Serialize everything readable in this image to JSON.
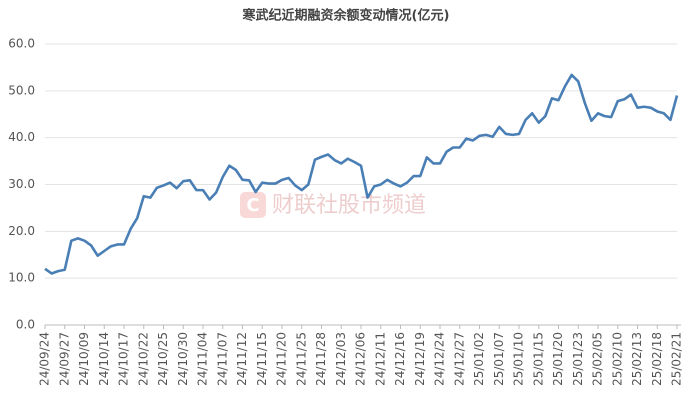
{
  "chart_data": {
    "type": "line",
    "title": "寒武纪近期融资余额变动情况(亿元)",
    "watermark": "财联社股市频道",
    "categories": [
      "24/09/24",
      null,
      null,
      "24/09/27",
      null,
      null,
      "24/10/09",
      null,
      null,
      "24/10/14",
      null,
      null,
      "24/10/17",
      null,
      null,
      "24/10/22",
      null,
      null,
      "24/10/25",
      null,
      null,
      "24/10/30",
      null,
      null,
      "24/11/04",
      null,
      null,
      "24/11/07",
      null,
      null,
      "24/11/12",
      null,
      null,
      "24/11/15",
      null,
      null,
      "24/11/20",
      null,
      null,
      "24/11/25",
      null,
      null,
      "24/11/28",
      null,
      null,
      "24/12/03",
      null,
      null,
      "24/12/06",
      null,
      null,
      "24/12/11",
      null,
      null,
      "24/12/16",
      null,
      null,
      "24/12/19",
      null,
      null,
      "24/12/24",
      null,
      null,
      "24/12/27",
      null,
      null,
      "25/01/02",
      null,
      null,
      "25/01/07",
      null,
      null,
      "25/01/10",
      null,
      null,
      "25/01/15",
      null,
      null,
      "25/01/20",
      null,
      null,
      "25/01/23",
      null,
      null,
      "25/02/05",
      null,
      null,
      "25/02/10",
      null,
      null,
      "25/02/13",
      null,
      null,
      "25/02/18",
      null,
      null,
      "25/02/21"
    ],
    "values": [
      12.0,
      11.0,
      11.5,
      11.8,
      18.0,
      18.5,
      18.0,
      17.0,
      14.8,
      15.8,
      16.8,
      17.2,
      17.2,
      20.5,
      22.8,
      27.5,
      27.2,
      29.3,
      29.8,
      30.4,
      29.2,
      30.7,
      30.9,
      28.8,
      28.8,
      26.8,
      28.3,
      31.6,
      34.0,
      33.1,
      31.0,
      30.9,
      28.4,
      30.4,
      30.2,
      30.2,
      31.0,
      31.4,
      29.8,
      28.8,
      30.0,
      35.3,
      35.9,
      36.4,
      35.2,
      34.5,
      35.5,
      34.8,
      34.0,
      27.2,
      29.6,
      30.0,
      31.0,
      30.2,
      29.6,
      30.4,
      31.8,
      31.8,
      35.8,
      34.5,
      34.5,
      37.0,
      37.9,
      37.9,
      39.8,
      39.4,
      40.4,
      40.6,
      40.2,
      42.3,
      40.8,
      40.6,
      40.8,
      43.8,
      45.2,
      43.2,
      44.6,
      48.4,
      48.0,
      51.0,
      53.4,
      52.0,
      47.4,
      43.6,
      45.2,
      44.6,
      44.4,
      47.8,
      48.2,
      49.2,
      46.4,
      46.6,
      46.4,
      45.6,
      45.2,
      43.8,
      49.0
    ],
    "color": "#4a7fb5",
    "ylim": [
      0,
      60
    ],
    "yticks": [
      {
        "value": 0,
        "label": "0.0"
      },
      {
        "value": 10,
        "label": "10.0"
      },
      {
        "value": 20,
        "label": "20.0"
      },
      {
        "value": 30,
        "label": "30.0"
      },
      {
        "value": 40,
        "label": "40.0"
      },
      {
        "value": 50,
        "label": "50.0"
      },
      {
        "value": 60,
        "label": "60.0"
      }
    ],
    "grid": true
  }
}
